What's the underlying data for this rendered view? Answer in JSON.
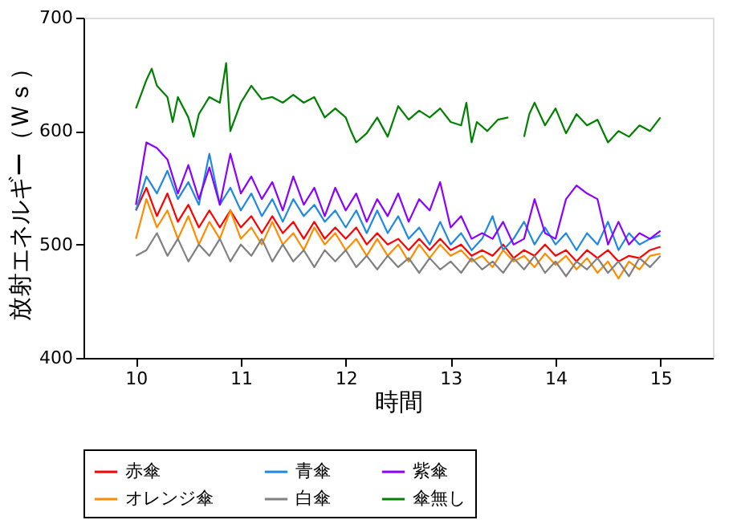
{
  "chart_data": {
    "type": "line",
    "xlabel": "時間",
    "ylabel": "放射エネルギー（Ｗｓ）",
    "x": [
      10.0,
      10.1,
      10.2,
      10.3,
      10.4,
      10.5,
      10.6,
      10.7,
      10.8,
      10.9,
      11.0,
      11.1,
      11.2,
      11.3,
      11.4,
      11.5,
      11.6,
      11.7,
      11.8,
      11.9,
      12.0,
      12.1,
      12.2,
      12.3,
      12.4,
      12.5,
      12.6,
      12.7,
      12.8,
      12.9,
      13.0,
      13.1,
      13.2,
      13.3,
      13.4,
      13.5,
      13.6,
      13.7,
      13.8,
      13.9,
      14.0,
      14.1,
      14.2,
      14.3,
      14.4,
      14.5,
      14.6,
      14.7,
      14.8,
      14.9,
      15.0
    ],
    "xlim": [
      9.5,
      15.5
    ],
    "xticks": [
      10,
      11,
      12,
      13,
      14,
      15
    ],
    "ylim": [
      400,
      700
    ],
    "yticks": [
      400,
      500,
      600,
      700
    ],
    "grid": false,
    "legend": "bottom",
    "marker": "none",
    "line_style": "solid",
    "series": [
      {
        "name": "赤傘",
        "color": "#ff0000",
        "values": [
          530,
          550,
          525,
          545,
          520,
          535,
          515,
          530,
          515,
          530,
          515,
          525,
          510,
          525,
          510,
          520,
          505,
          520,
          505,
          515,
          505,
          515,
          500,
          510,
          500,
          505,
          495,
          505,
          495,
          505,
          495,
          500,
          490,
          495,
          490,
          500,
          488,
          495,
          490,
          500,
          490,
          495,
          485,
          495,
          488,
          495,
          485,
          490,
          488,
          495,
          498
        ]
      },
      {
        "name": "青傘",
        "color": "#1e88e5",
        "values": [
          530,
          560,
          545,
          565,
          540,
          555,
          535,
          580,
          535,
          550,
          530,
          545,
          525,
          540,
          520,
          540,
          525,
          535,
          520,
          530,
          515,
          530,
          510,
          530,
          510,
          525,
          505,
          515,
          500,
          520,
          500,
          510,
          495,
          505,
          525,
          495,
          505,
          520,
          500,
          515,
          500,
          510,
          495,
          510,
          500,
          520,
          495,
          510,
          500,
          505,
          508
        ]
      },
      {
        "name": "紫傘",
        "color": "#8b00ff",
        "values": [
          535,
          590,
          585,
          575,
          545,
          570,
          540,
          568,
          535,
          580,
          545,
          560,
          540,
          555,
          530,
          560,
          535,
          550,
          525,
          550,
          530,
          545,
          520,
          540,
          525,
          545,
          520,
          540,
          530,
          555,
          515,
          525,
          505,
          510,
          505,
          520,
          500,
          505,
          540,
          510,
          505,
          540,
          552,
          545,
          540,
          500,
          520,
          500,
          510,
          505,
          512
        ]
      },
      {
        "name": "オレンジ傘",
        "color": "#ff8c00",
        "values": [
          505,
          540,
          515,
          530,
          505,
          525,
          500,
          520,
          505,
          530,
          505,
          515,
          500,
          520,
          500,
          510,
          495,
          515,
          500,
          510,
          495,
          505,
          490,
          505,
          490,
          500,
          485,
          500,
          488,
          500,
          490,
          495,
          485,
          490,
          480,
          495,
          485,
          490,
          480,
          492,
          482,
          490,
          478,
          488,
          475,
          485,
          470,
          485,
          478,
          490,
          492
        ]
      },
      {
        "name": "白傘",
        "color": "#808080",
        "values": [
          490,
          495,
          510,
          490,
          505,
          485,
          500,
          490,
          505,
          485,
          500,
          490,
          505,
          485,
          500,
          485,
          495,
          480,
          495,
          485,
          495,
          480,
          490,
          478,
          490,
          480,
          488,
          475,
          488,
          478,
          485,
          475,
          488,
          478,
          485,
          475,
          488,
          478,
          490,
          475,
          485,
          472,
          485,
          478,
          488,
          475,
          485,
          472,
          488,
          480,
          490
        ]
      },
      {
        "name": "傘無し",
        "color": "#008000",
        "x": [
          10.0,
          10.1,
          10.15,
          10.2,
          10.3,
          10.35,
          10.4,
          10.5,
          10.55,
          10.6,
          10.7,
          10.8,
          10.86,
          10.9,
          11.0,
          11.1,
          11.2,
          11.3,
          11.4,
          11.5,
          11.6,
          11.7,
          11.8,
          11.9,
          12.0,
          12.05,
          12.1,
          12.2,
          12.3,
          12.4,
          12.5,
          12.6,
          12.7,
          12.8,
          12.9,
          13.0,
          13.1,
          13.15,
          13.2,
          13.25,
          13.35,
          13.45,
          13.55,
          13.6,
          13.7,
          13.75,
          13.8,
          13.9,
          14.0,
          14.1,
          14.2,
          14.3,
          14.4,
          14.5,
          14.6,
          14.7,
          14.8,
          14.9,
          15.0
        ],
        "values": [
          620,
          645,
          655,
          640,
          630,
          608,
          630,
          612,
          595,
          615,
          630,
          625,
          660,
          600,
          625,
          640,
          628,
          630,
          625,
          632,
          625,
          630,
          612,
          620,
          612,
          600,
          590,
          598,
          612,
          595,
          622,
          610,
          618,
          612,
          620,
          608,
          605,
          625,
          590,
          608,
          600,
          610,
          612,
          null,
          595,
          615,
          625,
          605,
          620,
          598,
          615,
          605,
          610,
          590,
          600,
          595,
          605,
          600,
          612
        ]
      }
    ]
  }
}
